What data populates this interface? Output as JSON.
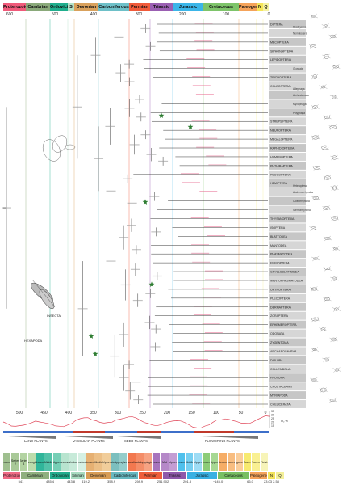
{
  "periods_top": [
    {
      "name": "Proterozoic",
      "color": "#f05a7a"
    },
    {
      "name": "Cambrian",
      "color": "#8aa97a"
    },
    {
      "name": "Ordovician",
      "color": "#1fae8d"
    },
    {
      "name": "S",
      "color": "#b5e2c8"
    },
    {
      "name": "Devonian",
      "color": "#d9a15c"
    },
    {
      "name": "Carboniferous",
      "color": "#6ec0c8"
    },
    {
      "name": "Permian",
      "color": "#f05a3a"
    },
    {
      "name": "Triassic",
      "color": "#9a5fb2"
    },
    {
      "name": "Jurassic",
      "color": "#3bb5e8"
    },
    {
      "name": "Cretaceous",
      "color": "#7ec46a"
    },
    {
      "name": "Paleogene",
      "color": "#f5a35a"
    },
    {
      "name": "N",
      "color": "#f5e55a"
    },
    {
      "name": "Q",
      "color": "#f5f2a0"
    }
  ],
  "time_ticks": [
    "600",
    "500",
    "400",
    "300",
    "200",
    "100",
    "0"
  ],
  "lower_ticks": [
    "500",
    "450",
    "400",
    "350",
    "300",
    "250",
    "200",
    "150",
    "100",
    "50",
    "0"
  ],
  "tree_labels": {
    "insecta": "INSECTA",
    "hexapoda": "HEXAPODA"
  },
  "clades": [
    {
      "label": "DIPTERA",
      "sub": "Brachycera"
    },
    {
      "label": "",
      "sub": "Nematocera"
    },
    {
      "label": "MECOPTERA",
      "sub": ""
    },
    {
      "label": "SIPHONAPTERA",
      "sub": ""
    },
    {
      "label": "LEPIDOPTERA",
      "sub": ""
    },
    {
      "label": "",
      "sub": "Glossata"
    },
    {
      "label": "TRICHOPTERA",
      "sub": ""
    },
    {
      "label": "COLEOPTERA",
      "sub": "Adephaga"
    },
    {
      "label": "",
      "sub": "Archostemata"
    },
    {
      "label": "",
      "sub": "Myxophaga"
    },
    {
      "label": "",
      "sub": "Polyphaga"
    },
    {
      "label": "STREPSIPTERA",
      "sub": ""
    },
    {
      "label": "NEUROPTERA",
      "sub": ""
    },
    {
      "label": "MEGALOPTERA",
      "sub": ""
    },
    {
      "label": "RAPHIDIOPTERA",
      "sub": ""
    },
    {
      "label": "HYMENOPTERA",
      "sub": ""
    },
    {
      "label": "PHTHIRAPTERA",
      "sub": ""
    },
    {
      "label": "PSOCOPTERA",
      "sub": ""
    },
    {
      "label": "HEMIPTERA",
      "sub": "Heteroptera"
    },
    {
      "label": "",
      "sub": "Auchenorrhyncha"
    },
    {
      "label": "",
      "sub": "Coleorrhyncha"
    },
    {
      "label": "",
      "sub": "Sternorrhyncha"
    },
    {
      "label": "THYSANOPTERA",
      "sub": ""
    },
    {
      "label": "ISOPTERA",
      "sub": ""
    },
    {
      "label": "BLATTODEA",
      "sub": ""
    },
    {
      "label": "MANTODEA",
      "sub": ""
    },
    {
      "label": "PHASMATODEA",
      "sub": ""
    },
    {
      "label": "EMBIOPTERA",
      "sub": ""
    },
    {
      "label": "GRYLLOBLATTODEA",
      "sub": ""
    },
    {
      "label": "MANTOPHASMATODEA",
      "sub": ""
    },
    {
      "label": "ORTHOPTERA",
      "sub": ""
    },
    {
      "label": "PLECOPTERA",
      "sub": ""
    },
    {
      "label": "DERMAPTERA",
      "sub": ""
    },
    {
      "label": "ZORAPTERA",
      "sub": ""
    },
    {
      "label": "EPHEMEROPTERA",
      "sub": ""
    },
    {
      "label": "ODONATA",
      "sub": ""
    },
    {
      "label": "ZYGENTOMA",
      "sub": ""
    },
    {
      "label": "ARCHAEOGNATHA",
      "sub": ""
    },
    {
      "label": "DIPLURA",
      "sub": ""
    },
    {
      "label": "COLLEMBOLA",
      "sub": ""
    },
    {
      "label": "PROTURA",
      "sub": ""
    },
    {
      "label": "CRUSTACEANS",
      "sub": ""
    },
    {
      "label": "MYRIAPODA",
      "sub": ""
    },
    {
      "label": "CHELICERATA",
      "sub": ""
    }
  ],
  "o2_axis": {
    "label": "O₂ %",
    "ticks": [
      "35",
      "30",
      "25",
      "20",
      "15"
    ]
  },
  "plants": {
    "land": "LAND PLANTS",
    "vascular": "VASCULAR PLANTS",
    "seed": "SEED PLANTS",
    "flowering": "FLOWERING PLANTS"
  },
  "epochs": [
    {
      "name": "Terreneuvian",
      "color": "#9fbf8f"
    },
    {
      "name": "Series 2",
      "color": "#a9c998"
    },
    {
      "name": "Series 3",
      "color": "#b3d3a2"
    },
    {
      "name": "Furongian",
      "color": "#bcdcab"
    },
    {
      "name": "Lower",
      "color": "#30b59a"
    },
    {
      "name": "Middle",
      "color": "#52c2a8"
    },
    {
      "name": "Upper",
      "color": "#76cfb6"
    },
    {
      "name": "Llandovery",
      "color": "#b8e4cf"
    },
    {
      "name": "Wenlock",
      "color": "#c7ead9"
    },
    {
      "name": "Ludlow",
      "color": "#d5f0e3"
    },
    {
      "name": "Lower",
      "color": "#e6b072"
    },
    {
      "name": "Middle",
      "color": "#ecbf86"
    },
    {
      "name": "Upper",
      "color": "#f1cd9a"
    },
    {
      "name": "Mississippian",
      "color": "#7cbfbe"
    },
    {
      "name": "Pennsylvanian",
      "color": "#95cdcb"
    },
    {
      "name": "Cisuralian",
      "color": "#f2784f"
    },
    {
      "name": "Guadalupian",
      "color": "#f48d68"
    },
    {
      "name": "Lopingian",
      "color": "#f6a383"
    },
    {
      "name": "Lower",
      "color": "#a774bd"
    },
    {
      "name": "Mid",
      "color": "#b588c8"
    },
    {
      "name": "Upper",
      "color": "#c39dd3"
    },
    {
      "name": "Lower",
      "color": "#4fc0ec"
    },
    {
      "name": "Middle",
      "color": "#76cff1"
    },
    {
      "name": "Upper",
      "color": "#9ddcf5"
    },
    {
      "name": "Lower",
      "color": "#8ccc78"
    },
    {
      "name": "Upper",
      "color": "#a6d893"
    },
    {
      "name": "Paleocene",
      "color": "#f6ad66"
    },
    {
      "name": "Eocene",
      "color": "#f8bd80"
    },
    {
      "name": "Oligocene",
      "color": "#facd9a"
    },
    {
      "name": "Miocene",
      "color": "#f7ea6f"
    },
    {
      "name": "Pliocene",
      "color": "#f9f092"
    },
    {
      "name": "Pleist.",
      "color": "#f7f4b8"
    }
  ],
  "periods_bottom": [
    {
      "name": "Proterozoic",
      "color": "#f06b85"
    },
    {
      "name": "Cambrian",
      "color": "#8fb07f"
    },
    {
      "name": "Ordovician",
      "color": "#22ad8e"
    },
    {
      "name": "Silurian",
      "color": "#a8dcc1"
    },
    {
      "name": "Devonian",
      "color": "#d79c55"
    },
    {
      "name": "Carboniferous",
      "color": "#67b9c0"
    },
    {
      "name": "Permian",
      "color": "#ee5d3b"
    },
    {
      "name": "Triassic",
      "color": "#8f58aa"
    },
    {
      "name": "Jurassic",
      "color": "#38b0e3"
    },
    {
      "name": "Cretaceous",
      "color": "#78bf63"
    },
    {
      "name": "Paleogene",
      "color": "#f4a259"
    },
    {
      "name": "N",
      "color": "#f2e25a"
    },
    {
      "name": "Q",
      "color": "#f4f09a"
    }
  ],
  "boundary_ages": [
    "541",
    "485.4",
    "443.8",
    "419.2",
    "358.9",
    "298.9",
    "251.902",
    "201.3",
    "~145.0",
    "66.0",
    "23.03",
    "2.58"
  ]
}
